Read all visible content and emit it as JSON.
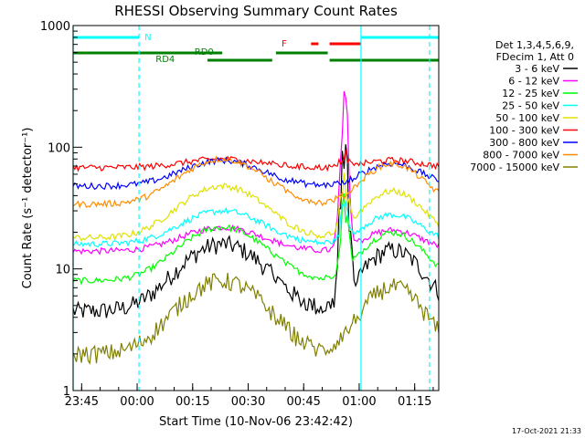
{
  "chart_data": {
    "type": "line",
    "title": "RHESSI Observing Summary Count Rates",
    "xlabel": "Start Time (10-Nov-06 23:42:42)",
    "ylabel": "Count Rate (s⁻¹ detector⁻¹)",
    "y_scale": "log",
    "ylim": [
      1,
      1000
    ],
    "xlim": [
      "23:42:42",
      "01:21:30"
    ],
    "x_ticks": [
      "23:45",
      "00:00",
      "00:15",
      "00:30",
      "00:45",
      "01:00",
      "01:15"
    ],
    "y_ticks": [
      "1",
      "10",
      "100",
      "1000"
    ],
    "legend_position": "right",
    "legend_header": [
      "Det 1,3,4,5,6,9,",
      "FDecim 1, Att 0"
    ],
    "series": [
      {
        "name": "3 - 6 keV",
        "color": "#000000",
        "base": 4.5,
        "hump": 16,
        "flare_peak": 110
      },
      {
        "name": "6 - 12 keV",
        "color": "#ff00ff",
        "base": 14,
        "hump": 22,
        "flare_peak": 280
      },
      {
        "name": "12 - 25 keV",
        "color": "#00ff00",
        "base": 8,
        "hump": 22,
        "flare_peak": 40
      },
      {
        "name": "25 - 50 keV",
        "color": "#00ffff",
        "base": 16,
        "hump": 30,
        "flare_peak": 35
      },
      {
        "name": "50 - 100 keV",
        "color": "#e0e000",
        "base": 18,
        "hump": 48,
        "flare_peak": 60
      },
      {
        "name": "100 - 300 keV",
        "color": "#ff0000",
        "base": 68,
        "hump": 80,
        "flare_peak": 95
      },
      {
        "name": "300 - 800 keV",
        "color": "#0000ff",
        "base": 48,
        "hump": 78,
        "flare_peak": 50
      },
      {
        "name": "800 - 7000 keV",
        "color": "#ff8c00",
        "base": 34,
        "hump": 80,
        "flare_peak": 40
      },
      {
        "name": "7000 - 15000 keV",
        "color": "#808000",
        "base": 2,
        "hump": 8,
        "flare_peak": 3
      }
    ],
    "flags": [
      {
        "label": "N",
        "color": "#00ffff"
      },
      {
        "label": "F",
        "color": "#ff0000"
      },
      {
        "label": "RD0",
        "color": "#008000"
      },
      {
        "label": "RD4",
        "color": "#008000"
      }
    ],
    "grid": false
  },
  "footer": {
    "date": "17-Oct-2021 21:33"
  }
}
